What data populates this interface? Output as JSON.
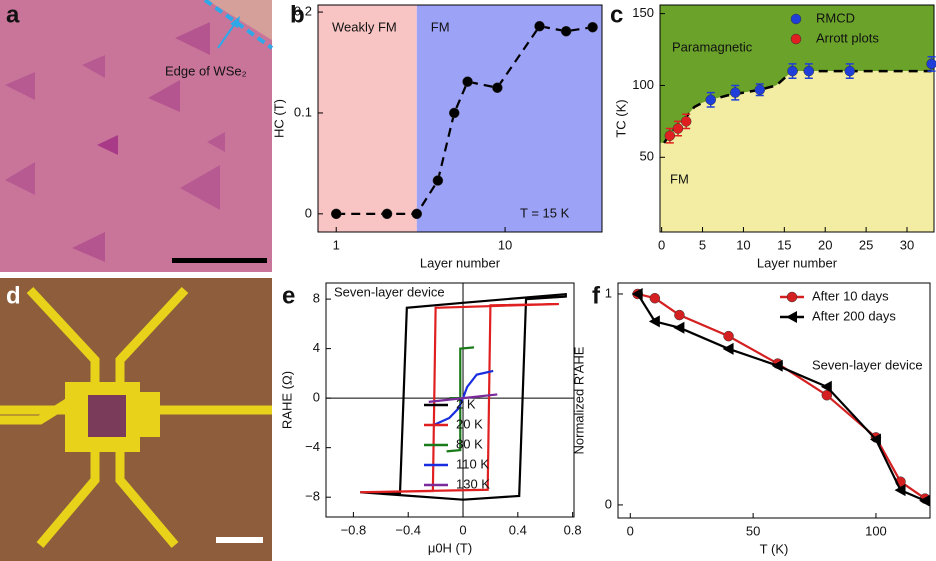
{
  "images": [
    {
      "label": "a",
      "annotation": "Edge of WSe₂"
    },
    {
      "label": "d"
    }
  ],
  "chart_data": [
    {
      "label": "b",
      "type": "line",
      "xlabel": "Layer number",
      "ylabel": "HC (T)",
      "xlog": true,
      "xlim": [
        0.78,
        37.5
      ],
      "ylim": [
        -0.018,
        0.207
      ],
      "xticks": [
        1,
        10
      ],
      "yticks": [
        0,
        0.1,
        0.2
      ],
      "regions": [
        {
          "name": "Weakly FM",
          "color": "#f9c4c4",
          "to": 3
        },
        {
          "name": "FM",
          "color": "#9ca2f6",
          "from": 3
        }
      ],
      "annotation": "T = 15 K",
      "series": [
        {
          "color": "#000000",
          "marker": "circle",
          "dash": true,
          "x": [
            1,
            2,
            3,
            4,
            5,
            6,
            9,
            16,
            23,
            33
          ],
          "values": [
            0,
            0,
            0,
            0.033,
            0.1,
            0.131,
            0.125,
            0.186,
            0.181,
            0.185
          ]
        }
      ]
    },
    {
      "label": "c",
      "type": "scatter",
      "xlabel": "Layer number",
      "ylabel": "TC (K)",
      "xlim": [
        -0.2,
        33.3
      ],
      "ylim": [
        -2,
        156
      ],
      "xticks": [
        0,
        5,
        10,
        15,
        20,
        25,
        30
      ],
      "yticks": [
        50,
        100,
        150
      ],
      "above_color": "#6aa22a",
      "below_color": "#f2eda2",
      "above_label": "Paramagnetic",
      "below_label": "FM",
      "boundary": {
        "x": [
          0.3,
          1,
          2,
          3,
          4,
          5,
          6,
          8,
          10,
          12,
          14,
          16,
          33
        ],
        "values": [
          60,
          66,
          72,
          78,
          85,
          88,
          90,
          93,
          95,
          97,
          100,
          110,
          110
        ]
      },
      "legend": "top-right",
      "series": [
        {
          "name": "RMCD",
          "color": "#1f3fd8",
          "marker": "circle",
          "x": [
            6,
            9,
            12,
            16,
            18,
            23,
            33
          ],
          "values": [
            90,
            95,
            97,
            110,
            110,
            110,
            115
          ],
          "errors": [
            5,
            5,
            4,
            5,
            5,
            5,
            5
          ]
        },
        {
          "name": "Arrott plots",
          "color": "#e02020",
          "marker": "circle",
          "x": [
            1,
            2,
            3
          ],
          "values": [
            65,
            70,
            75
          ],
          "errors": [
            5,
            5,
            5
          ]
        }
      ]
    },
    {
      "label": "e",
      "type": "line",
      "xlabel": "μ0H (T)",
      "ylabel": "RAHE (Ω)",
      "zero_lines": true,
      "xlim": [
        -1.0,
        0.81
      ],
      "ylim": [
        -9.6,
        9.3
      ],
      "xticks": [
        {
          "value": -0.8,
          "label": "−0.8"
        },
        {
          "value": -0.4,
          "label": "−0.4"
        },
        0,
        0.4,
        0.8
      ],
      "yticks": [
        {
          "value": -8,
          "label": "−8"
        },
        {
          "value": -4,
          "label": "−4"
        },
        0,
        4,
        8
      ],
      "annotation": "Seven-layer device",
      "legend": "bottom-right",
      "series": [
        {
          "name": "2 K",
          "color": "#000000",
          "x": [
            -0.75,
            -0.46,
            -0.41,
            0.0,
            0.75,
            0.75,
            0.46,
            0.41,
            0.0,
            -0.75
          ],
          "values": [
            -7.6,
            -7.7,
            7.3,
            7.7,
            8.4,
            8.2,
            8.0,
            -7.9,
            -8.2,
            -7.6
          ]
        },
        {
          "name": "20 K",
          "color": "#e02020",
          "x": [
            -0.75,
            -0.22,
            -0.2,
            0.7,
            0.2,
            0.18,
            -0.75
          ],
          "values": [
            -7.6,
            -7.5,
            7.3,
            7.6,
            7.5,
            -7.4,
            -7.6
          ]
        },
        {
          "name": "80 K",
          "color": "#1a7a1a",
          "x": [
            -0.12,
            -0.02,
            -0.02,
            -0.1,
            -0.02,
            -0.02,
            0.08
          ],
          "values": [
            -4.3,
            -4.2,
            0,
            0,
            0,
            4.0,
            4.1
          ]
        },
        {
          "name": "110 K",
          "color": "#1a2ee0",
          "x": [
            -0.22,
            -0.1,
            -0.03,
            0.0,
            0.03,
            0.1,
            0.22
          ],
          "values": [
            -2.2,
            -1.6,
            -0.8,
            0,
            0.9,
            1.9,
            2.2
          ]
        },
        {
          "name": "130 K",
          "color": "#7a2a9a",
          "x": [
            -0.25,
            0.0,
            0.25
          ],
          "values": [
            -0.3,
            0,
            0.3
          ]
        }
      ]
    },
    {
      "label": "f",
      "type": "line",
      "xlabel": "T (K)",
      "ylabel": "Normalized R'AHE",
      "xlim": [
        -5,
        122
      ],
      "ylim": [
        -0.062,
        1.052
      ],
      "xticks": [
        0,
        50,
        100
      ],
      "yticks": [
        0,
        1
      ],
      "annotation": "Seven-layer device",
      "legend": "top-right",
      "series": [
        {
          "name": "After 10 days",
          "color": "#d42020",
          "marker": "circle",
          "x": [
            3,
            10,
            20,
            40,
            60,
            80,
            100,
            110,
            120
          ],
          "values": [
            1,
            0.98,
            0.9,
            0.8,
            0.67,
            0.52,
            0.32,
            0.11,
            0.03
          ]
        },
        {
          "name": "After 200 days",
          "color": "#000000",
          "marker": "triangle",
          "x": [
            3,
            10,
            20,
            40,
            60,
            80,
            100,
            110,
            120
          ],
          "values": [
            1,
            0.87,
            0.84,
            0.74,
            0.66,
            0.56,
            0.31,
            0.07,
            0.02
          ]
        }
      ]
    }
  ]
}
